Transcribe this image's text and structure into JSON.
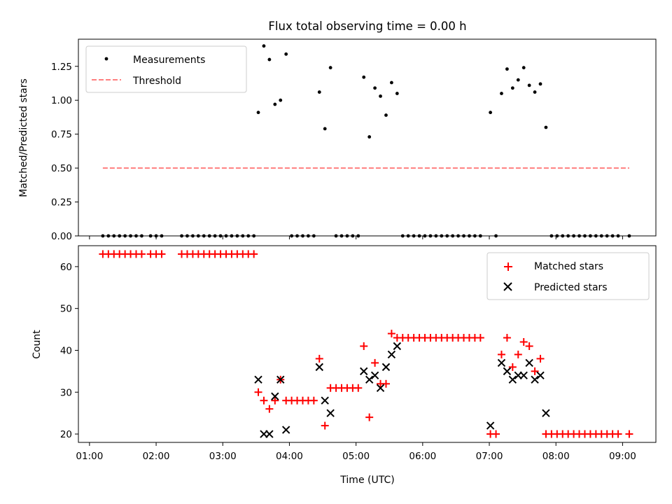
{
  "figure": {
    "title": "Flux total observing time = 0.00 h",
    "xlabel": "Time (UTC)"
  },
  "chart_data": [
    {
      "type": "scatter",
      "ylabel": "Matched/Predicted stars",
      "ylim": [
        0,
        1.45
      ],
      "yticks": [
        0.0,
        0.25,
        0.5,
        0.75,
        1.0,
        1.25
      ],
      "ytick_labels": [
        "0.00",
        "0.25",
        "0.50",
        "0.75",
        "1.00",
        "1.25"
      ],
      "legend_position": "upper-left",
      "series": [
        {
          "name": "Measurements",
          "marker": "dot",
          "color": "#000000",
          "points": [
            [
              "01:12",
              0
            ],
            [
              "01:17",
              0
            ],
            [
              "01:22",
              0
            ],
            [
              "01:27",
              0
            ],
            [
              "01:32",
              0
            ],
            [
              "01:37",
              0
            ],
            [
              "01:42",
              0
            ],
            [
              "01:47",
              0
            ],
            [
              "01:55",
              0
            ],
            [
              "02:00",
              0
            ],
            [
              "02:05",
              0
            ],
            [
              "02:23",
              0
            ],
            [
              "02:28",
              0
            ],
            [
              "02:33",
              0
            ],
            [
              "02:38",
              0
            ],
            [
              "02:43",
              0
            ],
            [
              "02:48",
              0
            ],
            [
              "02:53",
              0
            ],
            [
              "02:58",
              0
            ],
            [
              "03:03",
              0
            ],
            [
              "03:08",
              0
            ],
            [
              "03:13",
              0
            ],
            [
              "03:18",
              0
            ],
            [
              "03:23",
              0
            ],
            [
              "03:28",
              0
            ],
            [
              "03:32",
              0.91
            ],
            [
              "03:37",
              1.4
            ],
            [
              "03:42",
              1.3
            ],
            [
              "03:47",
              0.97
            ],
            [
              "03:52",
              1.0
            ],
            [
              "03:57",
              1.34
            ],
            [
              "04:02",
              0
            ],
            [
              "04:07",
              0
            ],
            [
              "04:12",
              0
            ],
            [
              "04:17",
              0
            ],
            [
              "04:22",
              0
            ],
            [
              "04:27",
              1.06
            ],
            [
              "04:32",
              0.79
            ],
            [
              "04:37",
              1.24
            ],
            [
              "04:42",
              0
            ],
            [
              "04:47",
              0
            ],
            [
              "04:52",
              0
            ],
            [
              "04:57",
              0
            ],
            [
              "05:02",
              0
            ],
            [
              "05:07",
              1.17
            ],
            [
              "05:12",
              0.73
            ],
            [
              "05:17",
              1.09
            ],
            [
              "05:22",
              1.03
            ],
            [
              "05:27",
              0.89
            ],
            [
              "05:32",
              1.13
            ],
            [
              "05:37",
              1.05
            ],
            [
              "05:42",
              0
            ],
            [
              "05:47",
              0
            ],
            [
              "05:52",
              0
            ],
            [
              "05:57",
              0
            ],
            [
              "06:02",
              0
            ],
            [
              "06:07",
              0
            ],
            [
              "06:12",
              0
            ],
            [
              "06:17",
              0
            ],
            [
              "06:22",
              0
            ],
            [
              "06:27",
              0
            ],
            [
              "06:32",
              0
            ],
            [
              "06:37",
              0
            ],
            [
              "06:42",
              0
            ],
            [
              "06:47",
              0
            ],
            [
              "06:52",
              0
            ],
            [
              "07:01",
              0.91
            ],
            [
              "07:06",
              0
            ],
            [
              "07:11",
              1.05
            ],
            [
              "07:16",
              1.23
            ],
            [
              "07:21",
              1.09
            ],
            [
              "07:26",
              1.15
            ],
            [
              "07:31",
              1.24
            ],
            [
              "07:36",
              1.11
            ],
            [
              "07:41",
              1.06
            ],
            [
              "07:46",
              1.12
            ],
            [
              "07:51",
              0.8
            ],
            [
              "07:56",
              0
            ],
            [
              "08:01",
              0
            ],
            [
              "08:06",
              0
            ],
            [
              "08:11",
              0
            ],
            [
              "08:16",
              0
            ],
            [
              "08:21",
              0
            ],
            [
              "08:26",
              0
            ],
            [
              "08:31",
              0
            ],
            [
              "08:36",
              0
            ],
            [
              "08:41",
              0
            ],
            [
              "08:46",
              0
            ],
            [
              "08:51",
              0
            ],
            [
              "08:56",
              0
            ],
            [
              "09:06",
              0
            ]
          ]
        },
        {
          "name": "Threshold",
          "marker": "dashed-line",
          "color": "#ff7f7f",
          "points": [
            [
              "01:12",
              0.5
            ],
            [
              "09:06",
              0.5
            ]
          ]
        }
      ]
    },
    {
      "type": "scatter",
      "ylabel": "Count",
      "ylim": [
        18,
        65
      ],
      "yticks": [
        20,
        30,
        40,
        50,
        60
      ],
      "ytick_labels": [
        "20",
        "30",
        "40",
        "50",
        "60"
      ],
      "xlim": [
        "00:50",
        "09:30"
      ],
      "xticks": [
        "01:00",
        "02:00",
        "03:00",
        "04:00",
        "05:00",
        "06:00",
        "07:00",
        "08:00",
        "09:00"
      ],
      "xtick_labels": [
        "01:00",
        "02:00",
        "03:00",
        "04:00",
        "05:00",
        "06:00",
        "07:00",
        "08:00",
        "09:00"
      ],
      "legend_position": "upper-right",
      "series": [
        {
          "name": "Matched stars",
          "marker": "plus",
          "color": "#ff0000",
          "points": [
            [
              "01:12",
              63
            ],
            [
              "01:17",
              63
            ],
            [
              "01:22",
              63
            ],
            [
              "01:27",
              63
            ],
            [
              "01:32",
              63
            ],
            [
              "01:37",
              63
            ],
            [
              "01:42",
              63
            ],
            [
              "01:47",
              63
            ],
            [
              "01:55",
              63
            ],
            [
              "02:00",
              63
            ],
            [
              "02:05",
              63
            ],
            [
              "02:23",
              63
            ],
            [
              "02:28",
              63
            ],
            [
              "02:33",
              63
            ],
            [
              "02:38",
              63
            ],
            [
              "02:43",
              63
            ],
            [
              "02:48",
              63
            ],
            [
              "02:53",
              63
            ],
            [
              "02:58",
              63
            ],
            [
              "03:03",
              63
            ],
            [
              "03:08",
              63
            ],
            [
              "03:13",
              63
            ],
            [
              "03:18",
              63
            ],
            [
              "03:23",
              63
            ],
            [
              "03:28",
              63
            ],
            [
              "03:32",
              30
            ],
            [
              "03:37",
              28
            ],
            [
              "03:42",
              26
            ],
            [
              "03:47",
              28
            ],
            [
              "03:52",
              33
            ],
            [
              "03:57",
              28
            ],
            [
              "04:02",
              28
            ],
            [
              "04:07",
              28
            ],
            [
              "04:12",
              28
            ],
            [
              "04:17",
              28
            ],
            [
              "04:22",
              28
            ],
            [
              "04:27",
              38
            ],
            [
              "04:32",
              22
            ],
            [
              "04:37",
              31
            ],
            [
              "04:42",
              31
            ],
            [
              "04:47",
              31
            ],
            [
              "04:52",
              31
            ],
            [
              "04:57",
              31
            ],
            [
              "05:02",
              31
            ],
            [
              "05:07",
              41
            ],
            [
              "05:12",
              24
            ],
            [
              "05:17",
              37
            ],
            [
              "05:22",
              32
            ],
            [
              "05:27",
              32
            ],
            [
              "05:32",
              44
            ],
            [
              "05:37",
              43
            ],
            [
              "05:42",
              43
            ],
            [
              "05:47",
              43
            ],
            [
              "05:52",
              43
            ],
            [
              "05:57",
              43
            ],
            [
              "06:02",
              43
            ],
            [
              "06:07",
              43
            ],
            [
              "06:12",
              43
            ],
            [
              "06:17",
              43
            ],
            [
              "06:22",
              43
            ],
            [
              "06:27",
              43
            ],
            [
              "06:32",
              43
            ],
            [
              "06:37",
              43
            ],
            [
              "06:42",
              43
            ],
            [
              "06:47",
              43
            ],
            [
              "06:52",
              43
            ],
            [
              "07:01",
              20
            ],
            [
              "07:06",
              20
            ],
            [
              "07:11",
              39
            ],
            [
              "07:16",
              43
            ],
            [
              "07:21",
              36
            ],
            [
              "07:26",
              39
            ],
            [
              "07:31",
              42
            ],
            [
              "07:36",
              41
            ],
            [
              "07:41",
              35
            ],
            [
              "07:46",
              38
            ],
            [
              "07:51",
              20
            ],
            [
              "07:56",
              20
            ],
            [
              "08:01",
              20
            ],
            [
              "08:06",
              20
            ],
            [
              "08:11",
              20
            ],
            [
              "08:16",
              20
            ],
            [
              "08:21",
              20
            ],
            [
              "08:26",
              20
            ],
            [
              "08:31",
              20
            ],
            [
              "08:36",
              20
            ],
            [
              "08:41",
              20
            ],
            [
              "08:46",
              20
            ],
            [
              "08:51",
              20
            ],
            [
              "08:56",
              20
            ],
            [
              "09:06",
              20
            ]
          ]
        },
        {
          "name": "Predicted stars",
          "marker": "x",
          "color": "#000000",
          "points": [
            [
              "03:32",
              33
            ],
            [
              "03:37",
              20
            ],
            [
              "03:42",
              20
            ],
            [
              "03:47",
              29
            ],
            [
              "03:52",
              33
            ],
            [
              "03:57",
              21
            ],
            [
              "04:27",
              36
            ],
            [
              "04:32",
              28
            ],
            [
              "04:37",
              25
            ],
            [
              "05:07",
              35
            ],
            [
              "05:12",
              33
            ],
            [
              "05:17",
              34
            ],
            [
              "05:22",
              31
            ],
            [
              "05:27",
              36
            ],
            [
              "05:32",
              39
            ],
            [
              "05:37",
              41
            ],
            [
              "07:01",
              22
            ],
            [
              "07:11",
              37
            ],
            [
              "07:16",
              35
            ],
            [
              "07:21",
              33
            ],
            [
              "07:26",
              34
            ],
            [
              "07:31",
              34
            ],
            [
              "07:36",
              37
            ],
            [
              "07:41",
              33
            ],
            [
              "07:46",
              34
            ],
            [
              "07:51",
              25
            ]
          ]
        }
      ]
    }
  ]
}
